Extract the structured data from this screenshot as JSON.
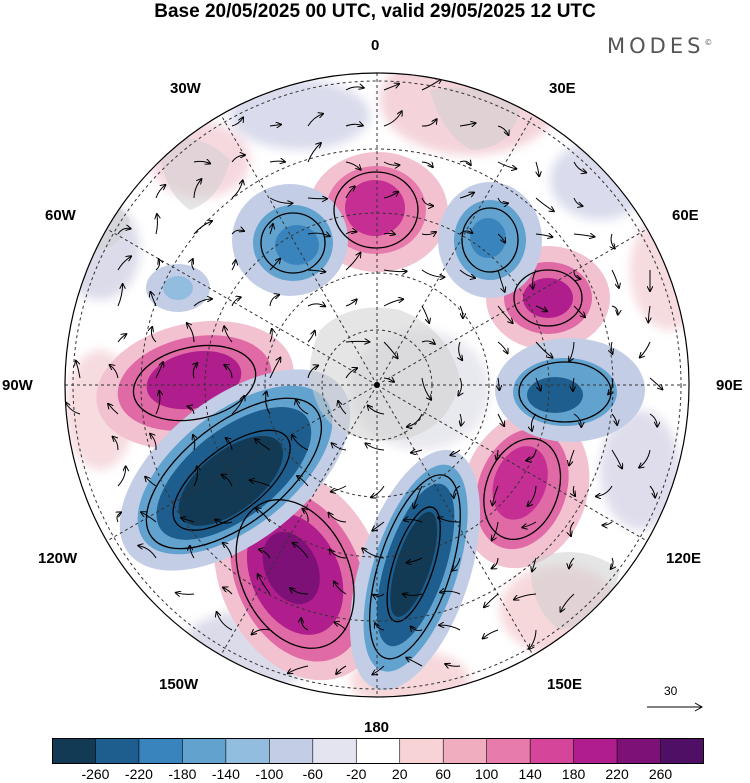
{
  "header": {
    "title": "Base 20/05/2025 00 UTC, valid 29/05/2025 12 UTC",
    "brand": "MODES",
    "brand_mark": "©"
  },
  "map": {
    "projection": "south-polar-stereographic",
    "longitude_labels": {
      "lon_0": "0",
      "lon_30e": "30E",
      "lon_60e": "60E",
      "lon_90e": "90E",
      "lon_120e": "120E",
      "lon_150e": "150E",
      "lon_180": "180",
      "lon_150w": "150W",
      "lon_120w": "120W",
      "lon_90w": "90W",
      "lon_60w": "60W",
      "lon_30w": "30W"
    },
    "wind_reference": {
      "label": "30"
    }
  },
  "colorbar": {
    "ticks": [
      "-260",
      "-220",
      "-180",
      "-140",
      "-100",
      "-60",
      "-20",
      "20",
      "60",
      "100",
      "140",
      "180",
      "220",
      "260"
    ],
    "colors": [
      "#133a55",
      "#1d5e8e",
      "#3a84bd",
      "#62a2cf",
      "#93bddf",
      "#c3cee6",
      "#e4e4f0",
      "#ffffff",
      "#f7d3d6",
      "#f1adc0",
      "#e77bab",
      "#d5459a",
      "#b01d8c",
      "#7d1177",
      "#4e0f64"
    ]
  }
}
